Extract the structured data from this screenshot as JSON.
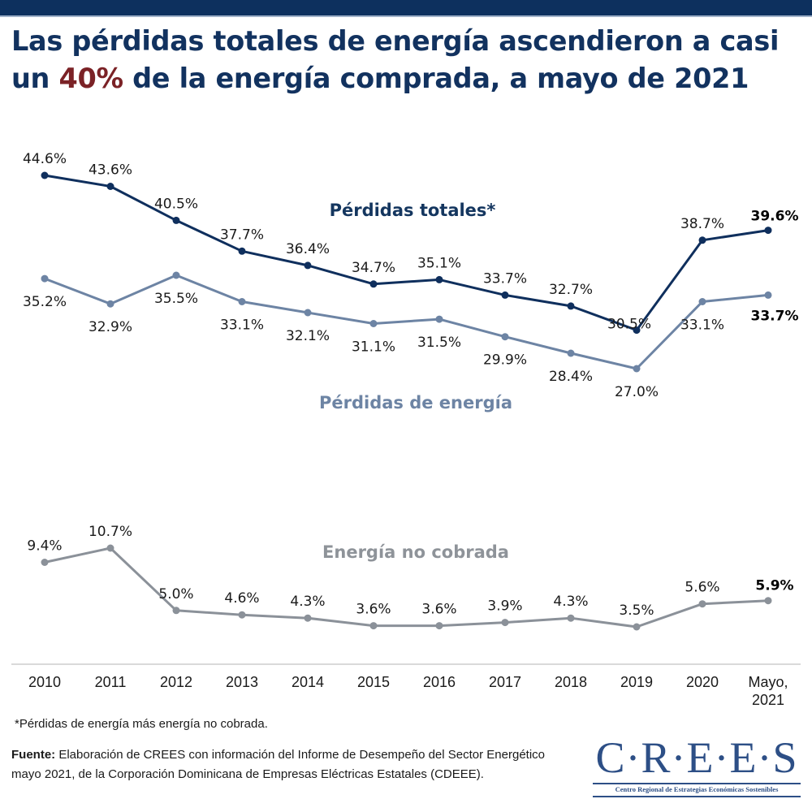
{
  "header": {
    "title_part1": "Las pérdidas totales de energía ascendieron a casi un ",
    "title_highlight": "40%",
    "title_part2": " de la energía comprada, a mayo de 2021",
    "colors": {
      "bar": "#0d305e",
      "title": "#12325f",
      "highlight": "#7b2226"
    }
  },
  "chart_data": {
    "type": "line",
    "title": "Las pérdidas totales de energía ascendieron a casi un 40% de la energía comprada, a mayo de 2021",
    "xlabel": "",
    "ylabel": "",
    "grid": false,
    "categories": [
      "2010",
      "2011",
      "2012",
      "2013",
      "2014",
      "2015",
      "2016",
      "2017",
      "2018",
      "2019",
      "2020",
      "Mayo, 2021"
    ],
    "series": [
      {
        "name": "Pérdidas totales*",
        "color": "#0f2f5d",
        "values": [
          44.6,
          43.6,
          40.5,
          37.7,
          36.4,
          34.7,
          35.1,
          33.7,
          32.7,
          30.5,
          38.7,
          39.6
        ],
        "labels": [
          "44.6%",
          "43.6%",
          "40.5%",
          "37.7%",
          "36.4%",
          "34.7%",
          "35.1%",
          "33.7%",
          "32.7%",
          "30.5%",
          "38.7%",
          "39.6%"
        ],
        "label_position": "above",
        "last_label_bold": true
      },
      {
        "name": "Pérdidas de energía",
        "color": "#6d84a4",
        "values": [
          35.2,
          32.9,
          35.5,
          33.1,
          32.1,
          31.1,
          31.5,
          29.9,
          28.4,
          27.0,
          33.1,
          33.7
        ],
        "labels": [
          "35.2%",
          "32.9%",
          "35.5%",
          "33.1%",
          "32.1%",
          "31.1%",
          "31.5%",
          "29.9%",
          "28.4%",
          "27.0%",
          "33.1%",
          "33.7%"
        ],
        "label_position": "below",
        "last_label_bold": true
      },
      {
        "name": "Energía no cobrada",
        "color": "#8b9199",
        "values": [
          9.4,
          10.7,
          5.0,
          4.6,
          4.3,
          3.6,
          3.6,
          3.9,
          4.3,
          3.5,
          5.6,
          5.9
        ],
        "labels": [
          "9.4%",
          "10.7%",
          "5.0%",
          "4.6%",
          "4.3%",
          "3.6%",
          "3.6%",
          "3.9%",
          "4.3%",
          "3.5%",
          "5.6%",
          "5.9%"
        ],
        "label_position": "above",
        "last_label_bold": true
      }
    ],
    "legend": {
      "placement": "inline",
      "entries": [
        {
          "text": "Pérdidas totales*",
          "color": "#14365f"
        },
        {
          "text": "Pérdidas de energía",
          "color": "#6d84a4"
        },
        {
          "text": "Energía no cobrada",
          "color": "#8e9399"
        }
      ]
    },
    "x_tick_labels": [
      [
        "2010"
      ],
      [
        "2011"
      ],
      [
        "2012"
      ],
      [
        "2013"
      ],
      [
        "2014"
      ],
      [
        "2015"
      ],
      [
        "2016"
      ],
      [
        "2017"
      ],
      [
        "2018"
      ],
      [
        "2019"
      ],
      [
        "2020"
      ],
      [
        "Mayo,",
        "2021"
      ]
    ],
    "axis_color": "#d9d9d9"
  },
  "footer": {
    "footnote": "*Pérdidas de energía más energía no cobrada.",
    "source_label": "Fuente:",
    "source_text": " Elaboración de CREES con información del Informe de Desempeño del Sector Energético mayo 2021, de la Corporación Dominicana de Empresas Eléctricas Estatales (CDEEE)."
  },
  "logo": {
    "wordmark": "C·R·E·E·S",
    "subtitle": "Centro Regional de Estrategias Económicas Sostenibles",
    "color": "#2d4f86"
  }
}
